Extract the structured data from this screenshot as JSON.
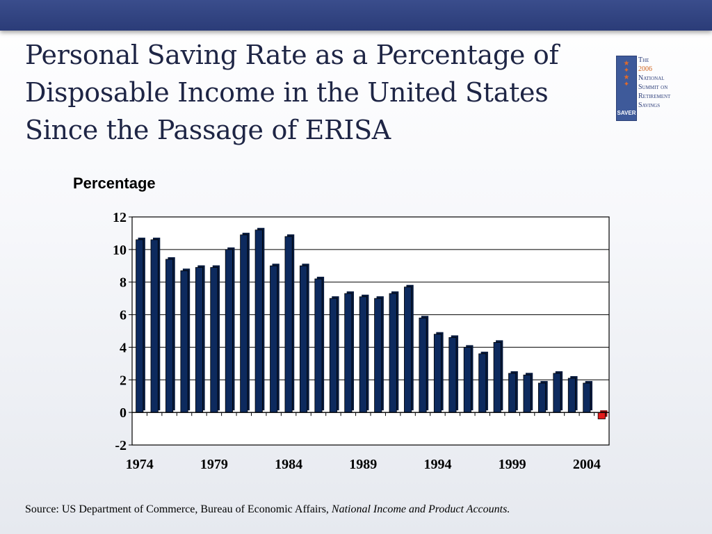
{
  "title_lines": [
    "Personal Saving Rate as a Percentage of",
    "Disposable Income in the United States",
    "Since the Passage of ERISA"
  ],
  "logo": {
    "lines": [
      "The",
      "2006",
      "National",
      "Summit on",
      "Retirement",
      "Savings"
    ],
    "flag_text": "SAVER"
  },
  "source": {
    "text": "Source: US Department of Commerce, Bureau of Economic Affairs, ",
    "italic": "National Income and Product Accounts."
  },
  "colors": {
    "bar": "#0d2a5e",
    "bar_dark": "#071a3d",
    "negative_bar": "#e31b1b",
    "header_bar": "#2f4180"
  },
  "chart_data": {
    "type": "bar",
    "ylabel": "Percentage",
    "ylim": [
      -2,
      12
    ],
    "yticks": [
      12,
      10,
      8,
      6,
      4,
      2,
      0,
      -2
    ],
    "grid": true,
    "xtick_labels": [
      "1974",
      "1979",
      "1984",
      "1989",
      "1994",
      "1999",
      "2004"
    ],
    "categories": [
      "1974",
      "1975",
      "1976",
      "1977",
      "1978",
      "1979",
      "1980",
      "1981",
      "1982",
      "1983",
      "1984",
      "1985",
      "1986",
      "1987",
      "1988",
      "1989",
      "1990",
      "1991",
      "1992",
      "1993",
      "1994",
      "1995",
      "1996",
      "1997",
      "1998",
      "1999",
      "2000",
      "2001",
      "2002",
      "2003",
      "2004",
      "2005"
    ],
    "values": [
      10.6,
      10.6,
      9.4,
      8.7,
      8.9,
      8.9,
      10.0,
      10.9,
      11.2,
      9.0,
      10.8,
      9.0,
      8.2,
      7.0,
      7.3,
      7.1,
      7.0,
      7.3,
      7.7,
      5.8,
      4.8,
      4.6,
      4.0,
      3.6,
      4.3,
      2.4,
      2.3,
      1.8,
      2.4,
      2.1,
      1.8,
      -0.4
    ]
  }
}
